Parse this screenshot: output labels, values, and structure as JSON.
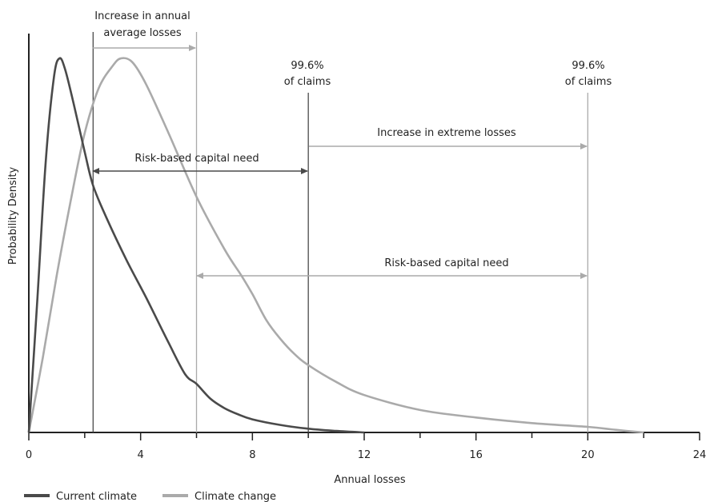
{
  "chart_data": {
    "type": "line",
    "xlabel": "Annual losses",
    "ylabel": "Probability Density",
    "xlim": [
      0,
      24
    ],
    "ylim": [
      0,
      1
    ],
    "xticks": [
      0,
      4,
      8,
      12,
      16,
      20,
      24
    ],
    "series": [
      {
        "name": "Current climate",
        "color": "#4a4a4a",
        "x": [
          0,
          0.3,
          0.6,
          0.9,
          1.1,
          1.3,
          1.6,
          2.0,
          2.3,
          2.8,
          3.5,
          4.2,
          5.0,
          5.6,
          6.0,
          6.5,
          7.0,
          7.5,
          8.0,
          9.0,
          10.0,
          11.0,
          12.0
        ],
        "y": [
          0,
          0.35,
          0.72,
          0.95,
          1.0,
          0.97,
          0.88,
          0.75,
          0.66,
          0.57,
          0.46,
          0.36,
          0.24,
          0.155,
          0.13,
          0.09,
          0.065,
          0.048,
          0.035,
          0.02,
          0.01,
          0.004,
          0
        ]
      },
      {
        "name": "Climate change",
        "color": "#aaaaaa",
        "x": [
          0,
          0.5,
          1.0,
          1.5,
          2.0,
          2.5,
          3.0,
          3.3,
          3.7,
          4.2,
          5.0,
          6.0,
          7.0,
          7.6,
          8.0,
          8.5,
          9.0,
          9.5,
          10.0,
          11.0,
          12.0,
          14.0,
          16.0,
          18.0,
          20.0,
          21.0,
          22.0
        ],
        "y": [
          0,
          0.2,
          0.42,
          0.62,
          0.8,
          0.92,
          0.98,
          1.0,
          0.99,
          0.93,
          0.8,
          0.63,
          0.49,
          0.42,
          0.37,
          0.3,
          0.25,
          0.21,
          0.18,
          0.135,
          0.1,
          0.06,
          0.04,
          0.025,
          0.015,
          0.007,
          0
        ]
      }
    ],
    "vlines": [
      {
        "x": 2.3,
        "color": "#4a4a4a"
      },
      {
        "x": 6.0,
        "color": "#aaaaaa"
      },
      {
        "x": 10.0,
        "color": "#4a4a4a"
      },
      {
        "x": 20.0,
        "color": "#aaaaaa"
      }
    ],
    "annotations": {
      "avg_losses_line1": "Increase in annual",
      "avg_losses_line2": "average losses",
      "pct_current_line1": "99.6%",
      "pct_current_line2": "of claims",
      "pct_change_line1": "99.6%",
      "pct_change_line2": "of claims",
      "extreme_losses": "Increase in extreme losses",
      "capital_current": "Risk-based capital need",
      "capital_change": "Risk-based capital need"
    },
    "legend": [
      {
        "label": "Current climate",
        "color": "#4a4a4a"
      },
      {
        "label": "Climate change",
        "color": "#aaaaaa"
      }
    ]
  }
}
